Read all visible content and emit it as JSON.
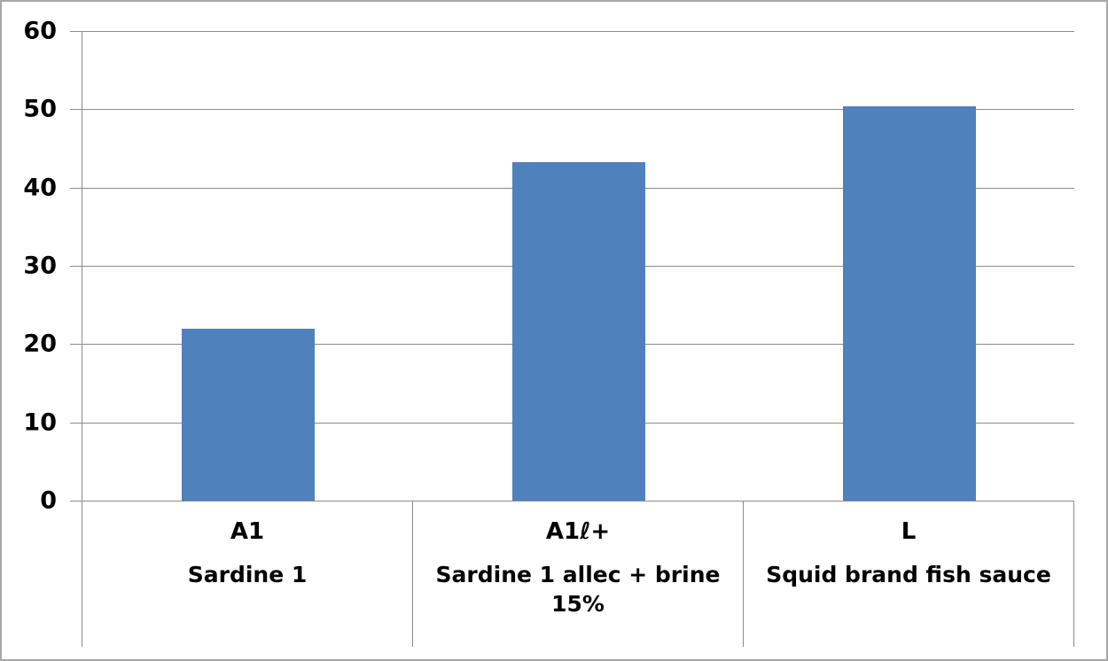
{
  "chart_data": {
    "type": "bar",
    "title": "",
    "categories": [
      {
        "code": "A1",
        "group": "Sardine 1"
      },
      {
        "code": "A1ℓ+",
        "group": "Sardine 1 allec + brine 15%"
      },
      {
        "code": "L",
        "group": "Squid brand fish sauce"
      }
    ],
    "values": [
      22,
      43.3,
      50.4
    ],
    "y_ticks": [
      60,
      50,
      40,
      30,
      20,
      10,
      0
    ],
    "ylim": [
      0,
      60
    ],
    "grid": true,
    "legend": "none",
    "bar_color": "#4F81BD",
    "gridline_color": "#8C8C8C",
    "axis_color": "#8C8C8C",
    "outer_border_color": "#A6A6A6",
    "text_color": "#000000",
    "background_color": "#FFFFFF"
  }
}
